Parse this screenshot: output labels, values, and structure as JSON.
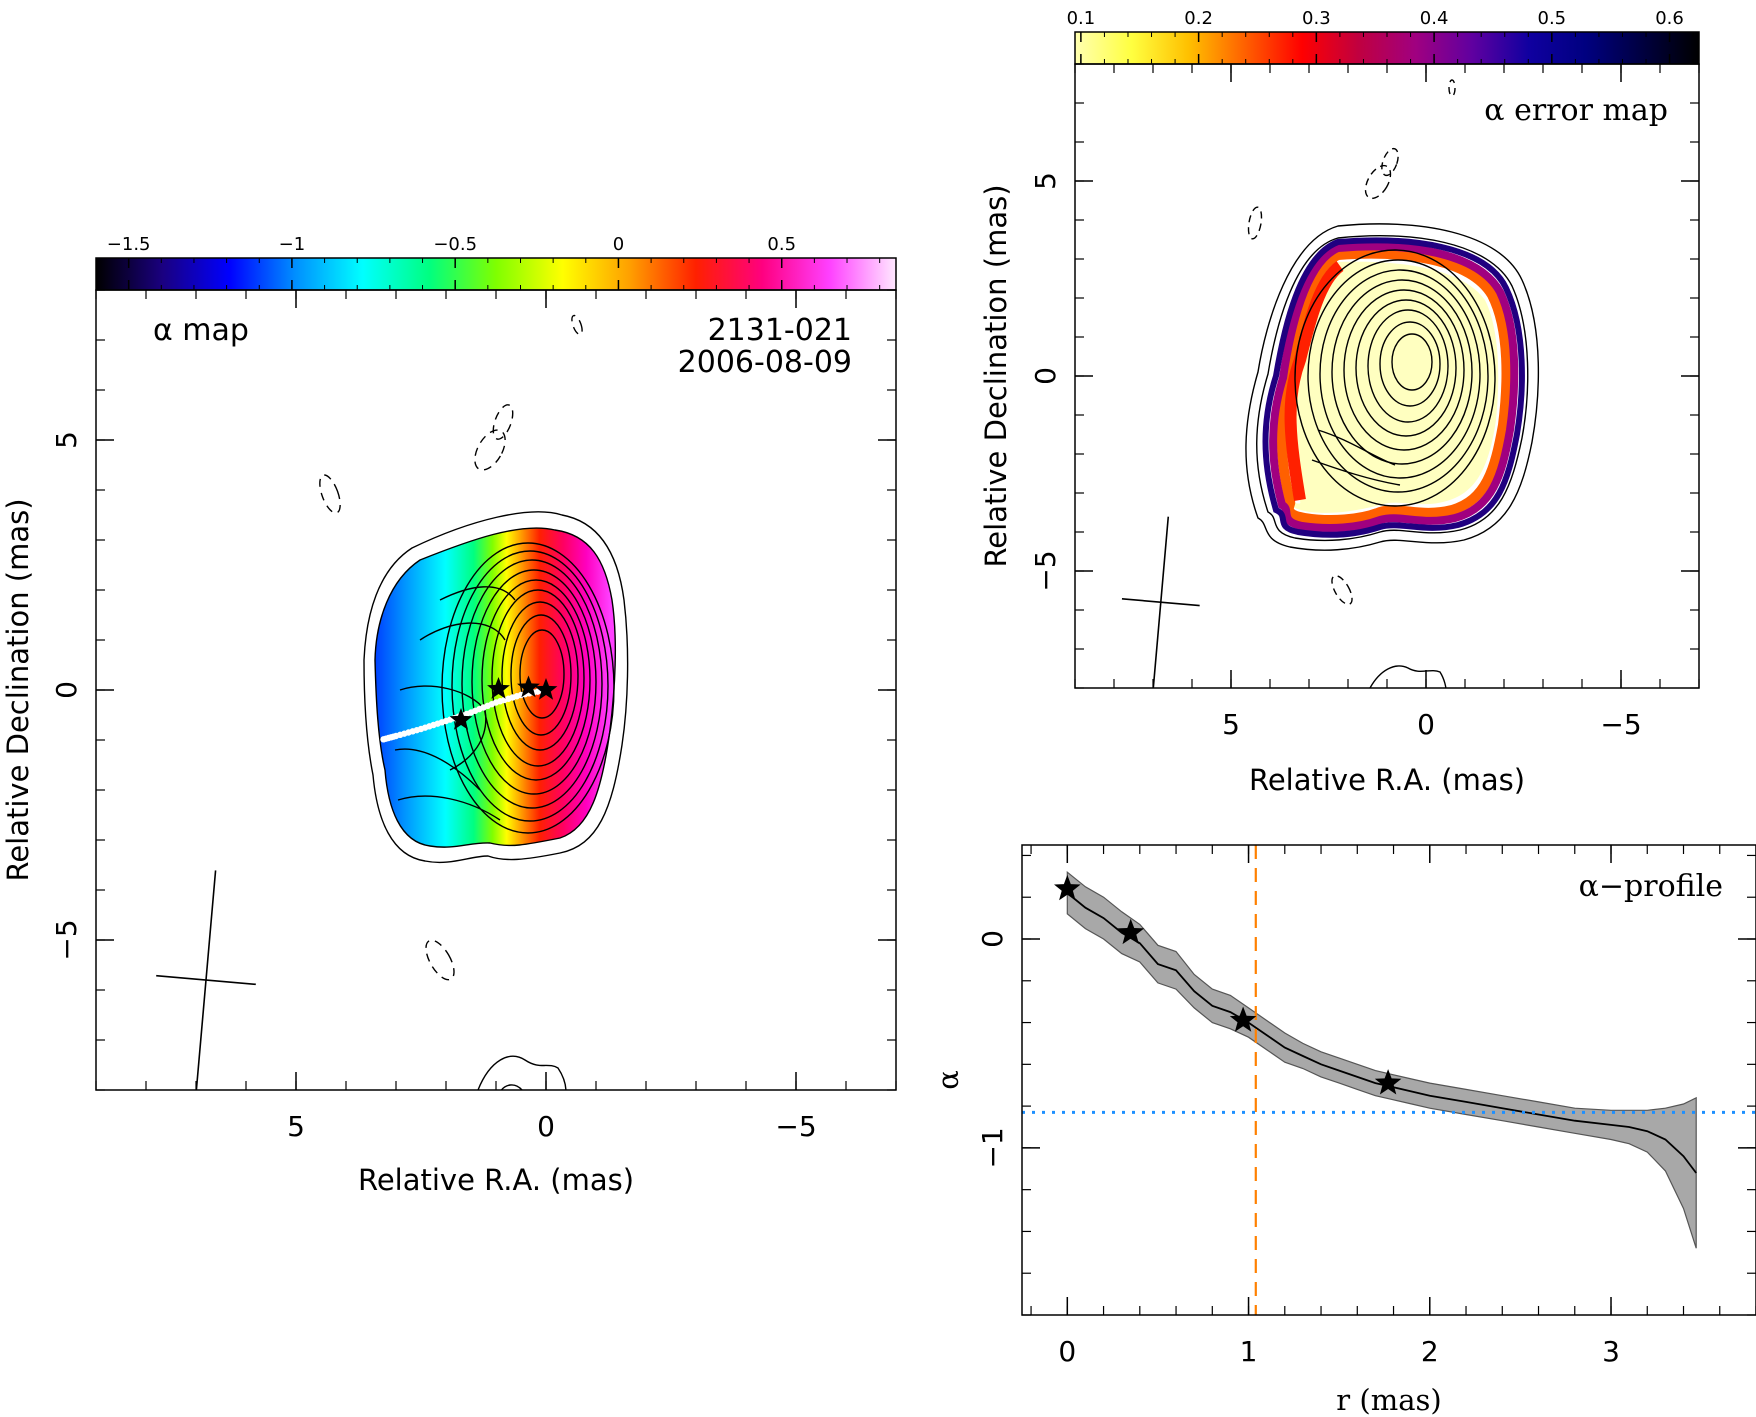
{
  "chart_data": [
    {
      "type": "heatmap",
      "panel": "spectral-index-map",
      "label": "α map",
      "source_name": "2131-021",
      "epoch": "2006-08-09",
      "xlabel": "Relative R.A. (mas)",
      "ylabel": "Relative Declination (mas)",
      "xlim": [
        9,
        -7
      ],
      "ylim": [
        -8,
        8
      ],
      "xticks": [
        5,
        0,
        -5
      ],
      "yticks": [
        -5,
        0,
        5
      ],
      "colorbar": {
        "range": [
          -1.6,
          0.85
        ],
        "ticks": [
          -1.5,
          -1,
          -0.5,
          0,
          0.5
        ],
        "tick_labels": [
          "−1.5",
          "−1",
          "−0.5",
          "0",
          "0.5"
        ],
        "colormap": [
          "#000000",
          "#1a0080",
          "#0000ff",
          "#0090ff",
          "#00ffff",
          "#00ff80",
          "#7fff00",
          "#ffff00",
          "#ffa000",
          "#ff2000",
          "#ff0080",
          "#ff40ff",
          "#ffe8ff"
        ]
      },
      "stars": [
        {
          "x": 0,
          "y": 0
        },
        {
          "x": 0.35,
          "y": 0.05
        },
        {
          "x": 0.95,
          "y": 0.02
        },
        {
          "x": 1.7,
          "y": -0.6
        }
      ],
      "ridge": {
        "x": [
          0,
          0.5,
          1.0,
          1.5,
          2.0,
          2.5,
          3.0,
          3.3
        ],
        "y": [
          0,
          -0.1,
          -0.25,
          -0.45,
          -0.62,
          -0.78,
          -0.92,
          -1.0
        ]
      },
      "beam": {
        "center": [
          6.8,
          -5.8
        ],
        "major": 2.2,
        "minor": 1.0,
        "pa_deg": -5
      }
    },
    {
      "type": "heatmap",
      "panel": "spectral-index-error-map",
      "label": "α error map",
      "xlabel": "Relative R.A. (mas)",
      "ylabel": "Relative Declination (mas)",
      "xlim": [
        9,
        -7
      ],
      "ylim": [
        -8,
        8
      ],
      "xticks": [
        5,
        0,
        -5
      ],
      "yticks": [
        -5,
        0,
        5
      ],
      "colorbar": {
        "range": [
          0.095,
          0.625
        ],
        "ticks": [
          0.1,
          0.2,
          0.3,
          0.4,
          0.5,
          0.6
        ],
        "tick_labels": [
          "0.1",
          "0.2",
          "0.3",
          "0.4",
          "0.5",
          "0.6"
        ],
        "colormap": [
          "#ffffb0",
          "#ffff40",
          "#ffc000",
          "#ff6000",
          "#ff0000",
          "#c00040",
          "#a00080",
          "#6000a0",
          "#1000a0",
          "#000080",
          "#000040",
          "#000000"
        ]
      },
      "beam": {
        "center": [
          6.8,
          -5.8
        ],
        "major": 2.2,
        "minor": 1.0,
        "pa_deg": -5
      }
    },
    {
      "type": "line",
      "panel": "alpha-profile",
      "label": "α−profile",
      "xlabel": "r (mas)",
      "ylabel": "α",
      "xlim": [
        -0.25,
        3.8
      ],
      "ylim": [
        -1.8,
        0.45
      ],
      "xticks": [
        0,
        1,
        2,
        3
      ],
      "yticks": [
        0,
        -1
      ],
      "tick_labels_y": [
        "0",
        "−1"
      ],
      "series": [
        {
          "x": [
            0,
            0.1,
            0.2,
            0.3,
            0.4,
            0.5,
            0.6,
            0.7,
            0.8,
            0.9,
            1.0,
            1.1,
            1.2,
            1.3,
            1.4,
            1.5,
            1.6,
            1.7,
            1.8,
            1.9,
            2.0,
            2.2,
            2.4,
            2.6,
            2.8,
            3.0,
            3.1,
            3.2,
            3.3,
            3.4,
            3.47
          ],
          "y": [
            0.22,
            0.15,
            0.1,
            0.03,
            -0.02,
            -0.12,
            -0.15,
            -0.25,
            -0.32,
            -0.35,
            -0.4,
            -0.46,
            -0.52,
            -0.56,
            -0.6,
            -0.63,
            -0.66,
            -0.69,
            -0.71,
            -0.73,
            -0.75,
            -0.78,
            -0.81,
            -0.84,
            -0.87,
            -0.89,
            -0.9,
            -0.92,
            -0.96,
            -1.04,
            -1.12
          ],
          "err": [
            0.1,
            0.1,
            0.1,
            0.1,
            0.09,
            0.09,
            0.09,
            0.08,
            0.08,
            0.08,
            0.07,
            0.07,
            0.07,
            0.06,
            0.06,
            0.06,
            0.06,
            0.06,
            0.06,
            0.06,
            0.06,
            0.06,
            0.06,
            0.06,
            0.06,
            0.07,
            0.08,
            0.1,
            0.15,
            0.25,
            0.36
          ]
        }
      ],
      "stars": [
        {
          "x": 0.0,
          "y": 0.24
        },
        {
          "x": 0.35,
          "y": 0.03
        },
        {
          "x": 0.97,
          "y": -0.39
        },
        {
          "x": 1.77,
          "y": -0.69
        }
      ],
      "vline": {
        "x": 1.04,
        "color": "#ff8000"
      },
      "hline": {
        "y": -0.83,
        "color": "#1e90ff"
      }
    }
  ]
}
